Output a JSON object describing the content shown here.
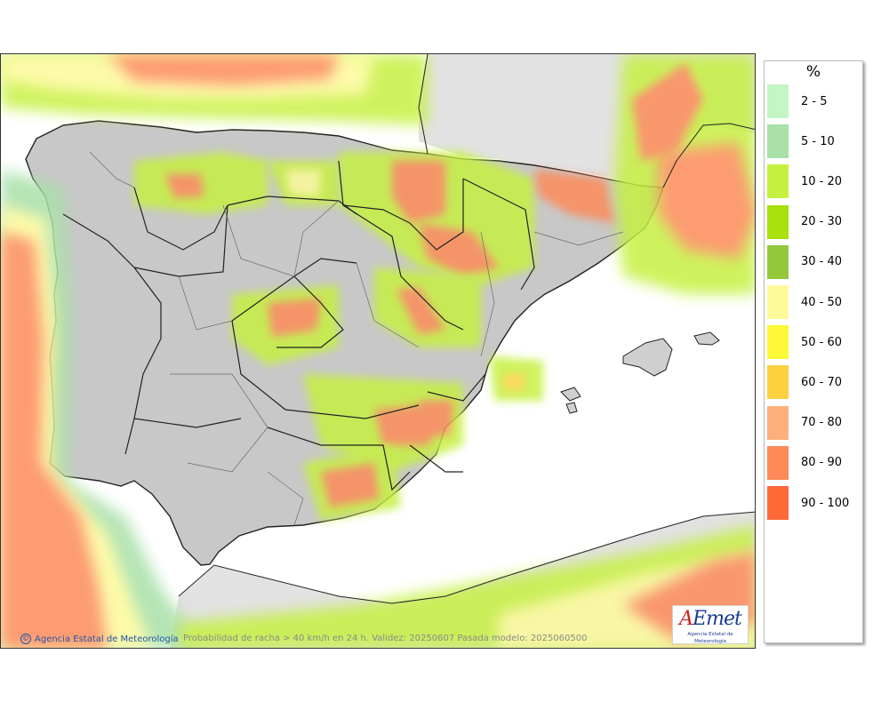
{
  "legend": {
    "title": "%",
    "items": [
      {
        "label": "2 - 5",
        "color": "#c4f5c4"
      },
      {
        "label": "5 - 10",
        "color": "#a8e0a8"
      },
      {
        "label": "10 - 20",
        "color": "#c6f040"
      },
      {
        "label": "20 - 30",
        "color": "#a8e010"
      },
      {
        "label": "30 - 40",
        "color": "#94c83c"
      },
      {
        "label": "40 - 50",
        "color": "#fdfa9a"
      },
      {
        "label": "50 - 60",
        "color": "#fdf835"
      },
      {
        "label": "60 - 70",
        "color": "#fdd040"
      },
      {
        "label": "70 - 80",
        "color": "#fdb07a"
      },
      {
        "label": "80 - 90",
        "color": "#fd8a58"
      },
      {
        "label": "90 - 100",
        "color": "#fd6a38"
      }
    ]
  },
  "footer": {
    "credit": "Agencia Estatal de Meteorología",
    "description": "Probabilidad de racha > 40 km/h en 24 h. Validez: 20250607 Pasada modelo: 2025060500"
  },
  "logo": {
    "mark": "AEmet",
    "subtitle": "Agencia Estatal de Meteorología"
  },
  "colors": {
    "land": "#c8c8c8",
    "sea": "#ffffff",
    "neighbour_land": "#e2e2e2",
    "border": "#222222"
  }
}
